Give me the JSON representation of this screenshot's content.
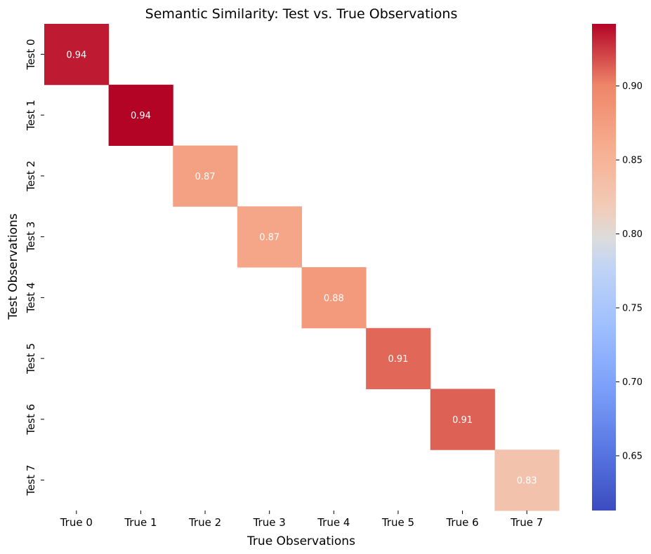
{
  "chart_data": {
    "type": "heatmap",
    "title": "Semantic Similarity: Test vs. True Observations",
    "xlabel": "True Observations",
    "ylabel": "Test Observations",
    "x_categories": [
      "True 0",
      "True 1",
      "True 2",
      "True 3",
      "True 4",
      "True 5",
      "True 6",
      "True 7"
    ],
    "y_categories": [
      "Test 0",
      "Test 1",
      "Test 2",
      "Test 3",
      "Test 4",
      "Test 5",
      "Test 6",
      "Test 7"
    ],
    "cells": [
      {
        "row": 0,
        "col": 0,
        "value": 0.935,
        "label": "0.94"
      },
      {
        "row": 1,
        "col": 1,
        "value": 0.942,
        "label": "0.94"
      },
      {
        "row": 2,
        "col": 2,
        "value": 0.872,
        "label": "0.87"
      },
      {
        "row": 3,
        "col": 3,
        "value": 0.866,
        "label": "0.87"
      },
      {
        "row": 4,
        "col": 4,
        "value": 0.878,
        "label": "0.88"
      },
      {
        "row": 5,
        "col": 5,
        "value": 0.91,
        "label": "0.91"
      },
      {
        "row": 6,
        "col": 6,
        "value": 0.912,
        "label": "0.91"
      },
      {
        "row": 7,
        "col": 7,
        "value": 0.83,
        "label": "0.83"
      }
    ],
    "colormap": "coolwarm",
    "color_range": [
      0.613,
      0.942
    ],
    "colorbar_ticks": [
      0.65,
      0.7,
      0.75,
      0.8,
      0.85,
      0.9
    ],
    "colorbar_tick_labels": [
      "0.65",
      "0.70",
      "0.75",
      "0.80",
      "0.85",
      "0.90"
    ],
    "off_diagonal": "blank",
    "colorbar_position": "right"
  }
}
